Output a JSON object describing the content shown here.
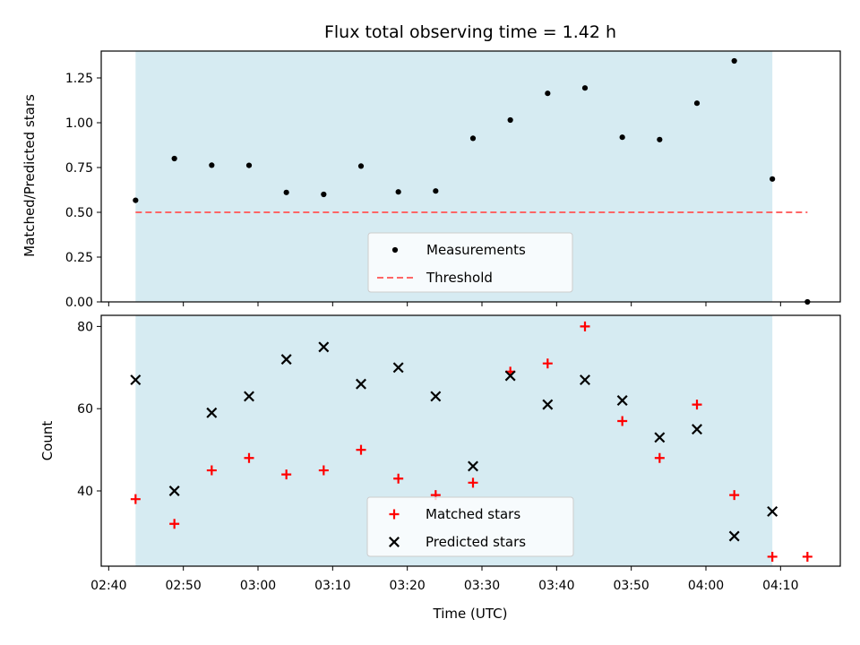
{
  "title": "Flux total observing time = 1.42 h",
  "colors": {
    "shade": "#add8e6",
    "measurement": "#000000",
    "threshold": "#ff6666",
    "matched": "#ff0000",
    "predicted": "#000000"
  },
  "chart_data": [
    {
      "type": "scatter",
      "ylabel": "Matched/Predicted stars",
      "xlim": [
        "02:39",
        "04:18"
      ],
      "ylim": [
        0,
        1.4
      ],
      "yticks": [
        "0.00",
        "0.25",
        "0.50",
        "0.75",
        "1.00",
        "1.25"
      ],
      "shaded_span": [
        "02:43.6",
        "04:08.9"
      ],
      "threshold": 0.5,
      "threshold_span": [
        "02:43.6",
        "04:13.6"
      ],
      "legend_location": "lower center",
      "legend": [
        "Measurements",
        "Threshold"
      ],
      "series": [
        {
          "name": "Measurements",
          "x": [
            "02:43.6",
            "02:48.8",
            "02:53.8",
            "02:58.8",
            "03:03.8",
            "03:08.8",
            "03:13.8",
            "03:18.8",
            "03:23.8",
            "03:28.8",
            "03:33.8",
            "03:38.8",
            "03:43.8",
            "03:48.8",
            "03:53.8",
            "03:58.8",
            "04:03.8",
            "04:08.9",
            "04:13.6"
          ],
          "values": [
            0.567,
            0.8,
            0.763,
            0.762,
            0.611,
            0.6,
            0.758,
            0.614,
            0.619,
            0.913,
            1.015,
            1.164,
            1.194,
            0.919,
            0.906,
            1.109,
            1.345,
            0.686,
            0.0
          ]
        }
      ]
    },
    {
      "type": "scatter",
      "ylabel": "Count",
      "xlabel": "Time (UTC)",
      "xlim": [
        "02:39",
        "04:18"
      ],
      "ylim": [
        21.7,
        82.7
      ],
      "yticks": [
        "40",
        "60",
        "80"
      ],
      "xticks": [
        "02:40",
        "02:50",
        "03:00",
        "03:10",
        "03:20",
        "03:30",
        "03:40",
        "03:50",
        "04:00",
        "04:10"
      ],
      "shaded_span": [
        "02:43.6",
        "04:08.9"
      ],
      "legend_location": "lower center",
      "legend": [
        "Matched stars",
        "Predicted stars"
      ],
      "series": [
        {
          "name": "Matched stars",
          "x": [
            "02:43.6",
            "02:48.8",
            "02:53.8",
            "02:58.8",
            "03:03.8",
            "03:08.8",
            "03:13.8",
            "03:18.8",
            "03:23.8",
            "03:28.8",
            "03:33.8",
            "03:38.8",
            "03:43.8",
            "03:48.8",
            "03:53.8",
            "03:58.8",
            "04:03.8",
            "04:08.9",
            "04:13.6"
          ],
          "values": [
            38,
            32,
            45,
            48,
            44,
            45,
            50,
            43,
            39,
            42,
            69,
            71,
            80,
            57,
            48,
            61,
            39,
            24,
            24
          ]
        },
        {
          "name": "Predicted stars",
          "x": [
            "02:43.6",
            "02:48.8",
            "02:53.8",
            "02:58.8",
            "03:03.8",
            "03:08.8",
            "03:13.8",
            "03:18.8",
            "03:23.8",
            "03:28.8",
            "03:33.8",
            "03:38.8",
            "03:43.8",
            "03:48.8",
            "03:53.8",
            "03:58.8",
            "04:03.8",
            "04:08.9"
          ],
          "values": [
            67,
            40,
            59,
            63,
            72,
            75,
            66,
            70,
            63,
            46,
            68,
            61,
            67,
            62,
            53,
            55,
            29,
            35
          ]
        }
      ]
    }
  ]
}
